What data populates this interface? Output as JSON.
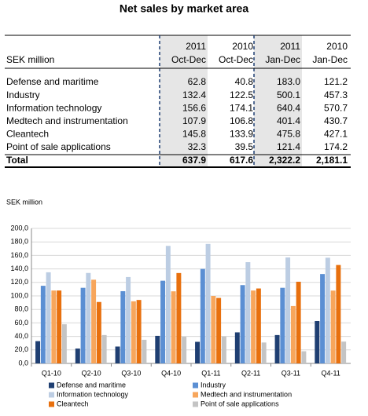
{
  "title": "Net sales by market area",
  "table": {
    "unit_label": "SEK million",
    "columns": [
      {
        "year": "2011",
        "period": "Oct-Dec"
      },
      {
        "year": "2010",
        "period": "Oct-Dec"
      },
      {
        "year": "2011",
        "period": "Jan-Dec"
      },
      {
        "year": "2010",
        "period": "Jan-Dec"
      }
    ],
    "rows": [
      {
        "label": "Defense and maritime",
        "cells": [
          "62.8",
          "40.8",
          "183.0",
          "121.2"
        ]
      },
      {
        "label": "Industry",
        "cells": [
          "132.4",
          "122.5",
          "500.1",
          "457.3"
        ]
      },
      {
        "label": "Information technology",
        "cells": [
          "156.6",
          "174.1",
          "640.4",
          "570.7"
        ]
      },
      {
        "label": "Medtech and instrumentation",
        "cells": [
          "107.9",
          "106.8",
          "401.4",
          "430.7"
        ]
      },
      {
        "label": "Cleantech",
        "cells": [
          "145.8",
          "133.9",
          "475.8",
          "427.1"
        ]
      },
      {
        "label": "Point of sale applications",
        "cells": [
          "32.3",
          "39.5",
          "121.4",
          "174.2"
        ]
      }
    ],
    "total": {
      "label": "Total",
      "cells": [
        "637.9",
        "617.6",
        "2,322.2",
        "2,181.1"
      ]
    }
  },
  "chart_data": {
    "type": "bar",
    "y_label": "SEK million",
    "categories": [
      "Q1-10",
      "Q2-10",
      "Q3-10",
      "Q4-10",
      "Q1-11",
      "Q2-11",
      "Q3-11",
      "Q4-11"
    ],
    "series": [
      {
        "name": "Defense and maritime",
        "color": "#1f3f72",
        "values": [
          33,
          22,
          25,
          40.8,
          32,
          46,
          42,
          62.8
        ]
      },
      {
        "name": "Industry",
        "color": "#5b8fd3",
        "values": [
          115,
          112,
          107,
          122.5,
          140,
          116,
          112,
          132.4
        ]
      },
      {
        "name": "Information technology",
        "color": "#bccde3",
        "values": [
          135,
          134,
          128,
          174.1,
          177,
          150,
          157,
          156.6
        ]
      },
      {
        "name": "Medtech and instrumentation",
        "color": "#f7a65c",
        "values": [
          108,
          124,
          92,
          106.8,
          100,
          108,
          85,
          107.9
        ]
      },
      {
        "name": "Cleantech",
        "color": "#e8700e",
        "values": [
          108,
          91,
          94,
          133.9,
          97,
          111,
          121,
          145.8
        ]
      },
      {
        "name": "Point of sale applications",
        "color": "#c4c4c4",
        "values": [
          58,
          42,
          35,
          39.5,
          40,
          31,
          18,
          32.3
        ]
      }
    ],
    "ylim": [
      0,
      200
    ],
    "yticks": [
      {
        "value": 0,
        "label": "0,0"
      },
      {
        "value": 20,
        "label": "20,0"
      },
      {
        "value": 40,
        "label": "40,0"
      },
      {
        "value": 60,
        "label": "60,0"
      },
      {
        "value": 80,
        "label": "80,0"
      },
      {
        "value": 100,
        "label": "100,0"
      },
      {
        "value": 120,
        "label": "120,0"
      },
      {
        "value": 140,
        "label": "140,0"
      },
      {
        "value": 160,
        "label": "160,0"
      },
      {
        "value": 180,
        "label": "180,0"
      },
      {
        "value": 200,
        "label": "200,0"
      }
    ],
    "grid": true
  }
}
